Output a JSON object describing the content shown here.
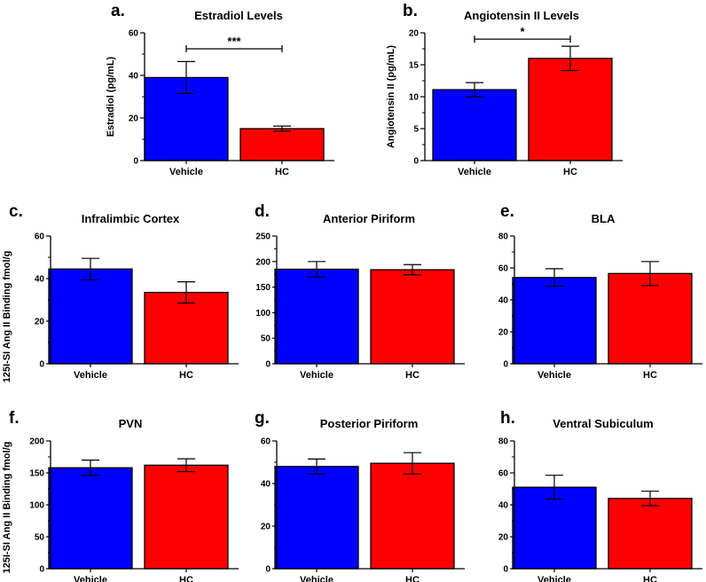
{
  "figure": {
    "colors": {
      "Vehicle": "#0000ff",
      "HC": "#ff0000",
      "axis": "#000000"
    },
    "shared_ylabels": {
      "row2": "125I-SI Ang II Binding fmol/g",
      "row3": "125I-SI Ang II Binding fmol/g"
    }
  },
  "chart_data": [
    {
      "id": "estradiol",
      "panel": "a.",
      "type": "bar",
      "title": "Estradiol Levels",
      "categories": [
        "Vehicle",
        "HC"
      ],
      "values": [
        39,
        15
      ],
      "errors": [
        7.5,
        1.2
      ],
      "ylabel": "Estradiol (pg/mL)",
      "ylim": [
        0,
        60
      ],
      "yticks": [
        0,
        20,
        40,
        60
      ],
      "yticks_labels": [
        "0",
        "20",
        "40",
        "60"
      ],
      "significance": "***"
    },
    {
      "id": "angiotensin",
      "panel": "b.",
      "type": "bar",
      "title": "Angiotensin II Levels",
      "categories": [
        "Vehicle",
        "HC"
      ],
      "values": [
        11.1,
        16
      ],
      "errors": [
        1.1,
        1.9
      ],
      "ylabel": "Angiotensin II (pg/mL)",
      "ylim": [
        0,
        20
      ],
      "yticks": [
        0,
        5,
        10,
        15,
        20
      ],
      "yticks_labels": [
        "0",
        "5",
        "10",
        "15",
        "20"
      ],
      "significance": "*"
    },
    {
      "id": "infralimbic",
      "panel": "c.",
      "type": "bar",
      "title": "Infralimbic Cortex",
      "categories": [
        "Vehicle",
        "HC"
      ],
      "values": [
        44.5,
        33.5
      ],
      "errors": [
        5,
        5
      ],
      "ylabel": "",
      "ylim": [
        0,
        60
      ],
      "yticks": [
        0,
        20,
        40,
        60
      ],
      "yticks_labels": [
        "0",
        "20",
        "40",
        "60"
      ]
    },
    {
      "id": "anterior-piriform",
      "panel": "d.",
      "type": "bar",
      "title": "Anterior Piriform",
      "categories": [
        "Vehicle",
        "HC"
      ],
      "values": [
        185,
        184
      ],
      "errors": [
        15,
        10
      ],
      "ylabel": "",
      "ylim": [
        0,
        250
      ],
      "yticks": [
        0,
        50,
        100,
        150,
        200,
        250
      ],
      "yticks_labels": [
        "0",
        "50",
        "100",
        "150",
        "200",
        "250"
      ]
    },
    {
      "id": "bla",
      "panel": "e.",
      "type": "bar",
      "title": "BLA",
      "categories": [
        "Vehicle",
        "HC"
      ],
      "values": [
        54,
        56.5
      ],
      "errors": [
        5.5,
        7.5
      ],
      "ylabel": "",
      "ylim": [
        0,
        80
      ],
      "yticks": [
        0,
        20,
        40,
        60,
        80
      ],
      "yticks_labels": [
        "0",
        "20",
        "40",
        "60",
        "80"
      ]
    },
    {
      "id": "pvn",
      "panel": "f.",
      "type": "bar",
      "title": "PVN",
      "categories": [
        "Vehicle",
        "HC"
      ],
      "values": [
        158,
        162
      ],
      "errors": [
        12,
        10
      ],
      "ylabel": "",
      "ylim": [
        0,
        200
      ],
      "yticks": [
        0,
        50,
        100,
        150,
        200
      ],
      "yticks_labels": [
        "0",
        "50",
        "100",
        "150",
        "200"
      ]
    },
    {
      "id": "posterior-piriform",
      "panel": "g.",
      "type": "bar",
      "title": "Posterior Piriform",
      "categories": [
        "Vehicle",
        "HC"
      ],
      "values": [
        48,
        49.5
      ],
      "errors": [
        3.5,
        5
      ],
      "ylabel": "",
      "ylim": [
        0,
        60
      ],
      "yticks": [
        0,
        20,
        40,
        60
      ],
      "yticks_labels": [
        "0",
        "20",
        "40",
        "60"
      ]
    },
    {
      "id": "ventral-subiculum",
      "panel": "h.",
      "type": "bar",
      "title": "Ventral Subiculum",
      "categories": [
        "Vehicle",
        "HC"
      ],
      "values": [
        51,
        44
      ],
      "errors": [
        7.5,
        4.5
      ],
      "ylabel": "",
      "ylim": [
        0,
        80
      ],
      "yticks": [
        0,
        20,
        40,
        60,
        80
      ],
      "yticks_labels": [
        "0",
        "20",
        "40",
        "60",
        "80"
      ]
    }
  ]
}
